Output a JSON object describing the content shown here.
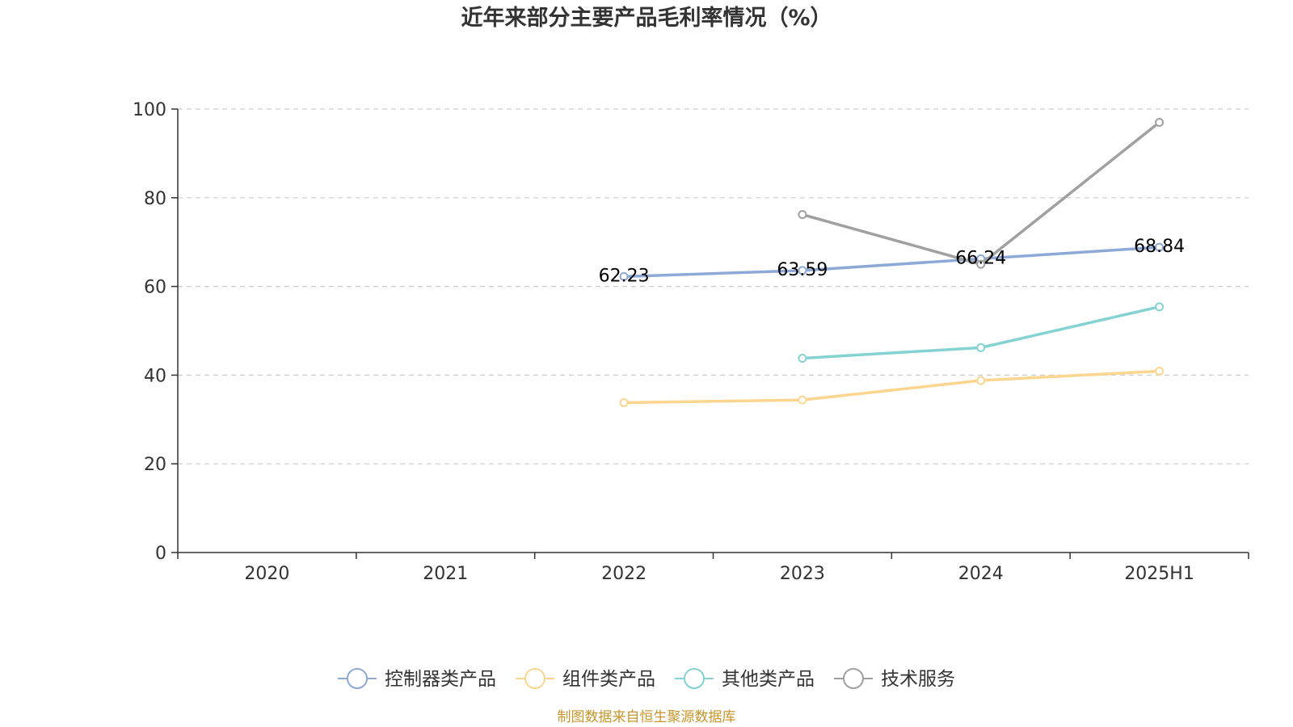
{
  "chart_data": {
    "type": "line",
    "title": "近年来部分主要产品毛利率情况（%）",
    "categories": [
      "2020",
      "2021",
      "2022",
      "2023",
      "2024",
      "2025H1"
    ],
    "ylim": [
      0,
      100
    ],
    "yticks": [
      0,
      20,
      40,
      60,
      80,
      100
    ],
    "grid": true,
    "legend_position": "bottom",
    "series": [
      {
        "name": "控制器类产品",
        "color": "#8ea9d8",
        "values": [
          null,
          null,
          62.23,
          63.59,
          66.24,
          68.84
        ],
        "labels": [
          null,
          null,
          "62.23",
          "63.59",
          "66.24",
          "68.84"
        ]
      },
      {
        "name": "组件类产品",
        "color": "#fcd58f",
        "values": [
          null,
          null,
          33.8,
          34.4,
          38.8,
          40.9
        ],
        "labels": [
          null,
          null,
          null,
          null,
          null,
          null
        ]
      },
      {
        "name": "其他类产品",
        "color": "#85d2d2",
        "values": [
          null,
          null,
          null,
          43.8,
          46.2,
          55.4
        ],
        "labels": [
          null,
          null,
          null,
          null,
          null,
          null
        ]
      },
      {
        "name": "技术服务",
        "color": "#a0a0a0",
        "values": [
          null,
          null,
          null,
          76.2,
          65.0,
          97.0
        ],
        "labels": [
          null,
          null,
          null,
          null,
          null,
          null
        ]
      }
    ]
  },
  "footer": {
    "source": "制图数据来自恒生聚源数据库",
    "source_color": "#c8962a"
  }
}
